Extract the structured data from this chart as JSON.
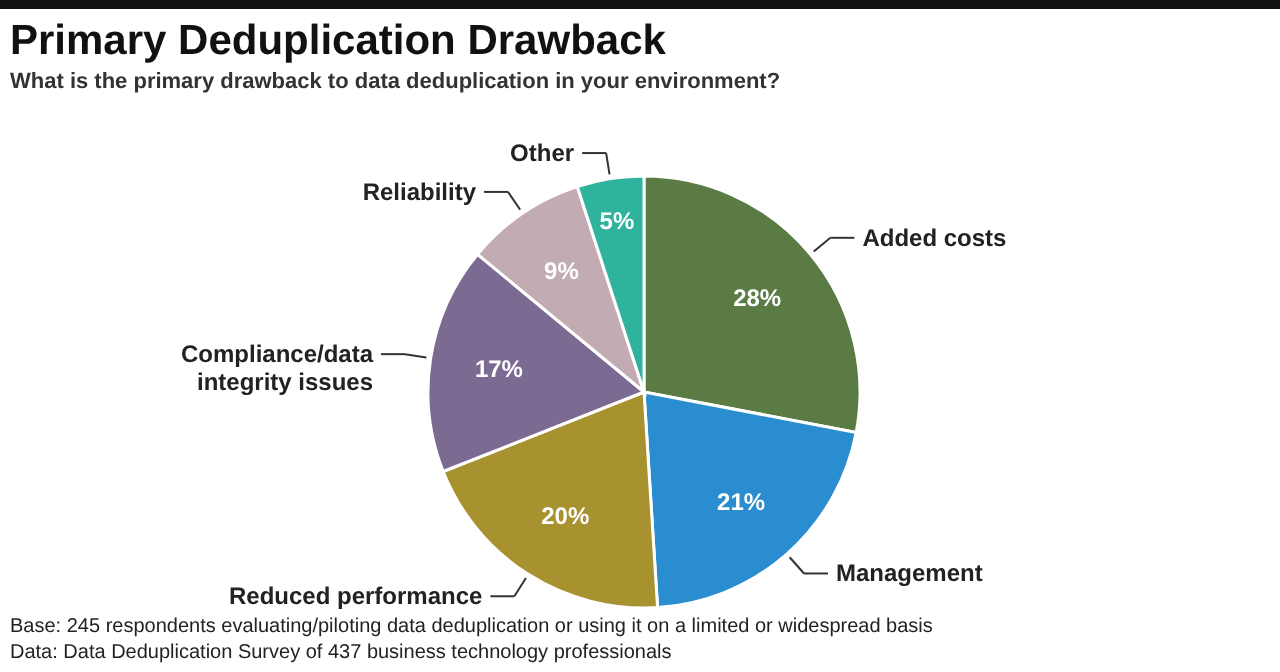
{
  "chart_data": {
    "type": "pie",
    "title": "Primary Deduplication Drawback",
    "subtitle": "What is the primary drawback to data deduplication in your environment?",
    "categories": [
      "Added costs",
      "Management",
      "Reduced performance",
      "Compliance/data integrity issues",
      "Reliability",
      "Other"
    ],
    "values": [
      28,
      21,
      20,
      17,
      9,
      5
    ],
    "colors": [
      "#5b7b45",
      "#2a8dd0",
      "#a8912f",
      "#7b6a92",
      "#c2abb3",
      "#2fb39c"
    ],
    "value_labels": [
      "28%",
      "21%",
      "20%",
      "17%",
      "9%",
      "5%"
    ],
    "annotations": [
      "Base: 245 respondents evaluating/piloting data deduplication or using it on a limited or widespread basis",
      "Data: Data Deduplication Survey of 437 business technology professionals"
    ]
  }
}
